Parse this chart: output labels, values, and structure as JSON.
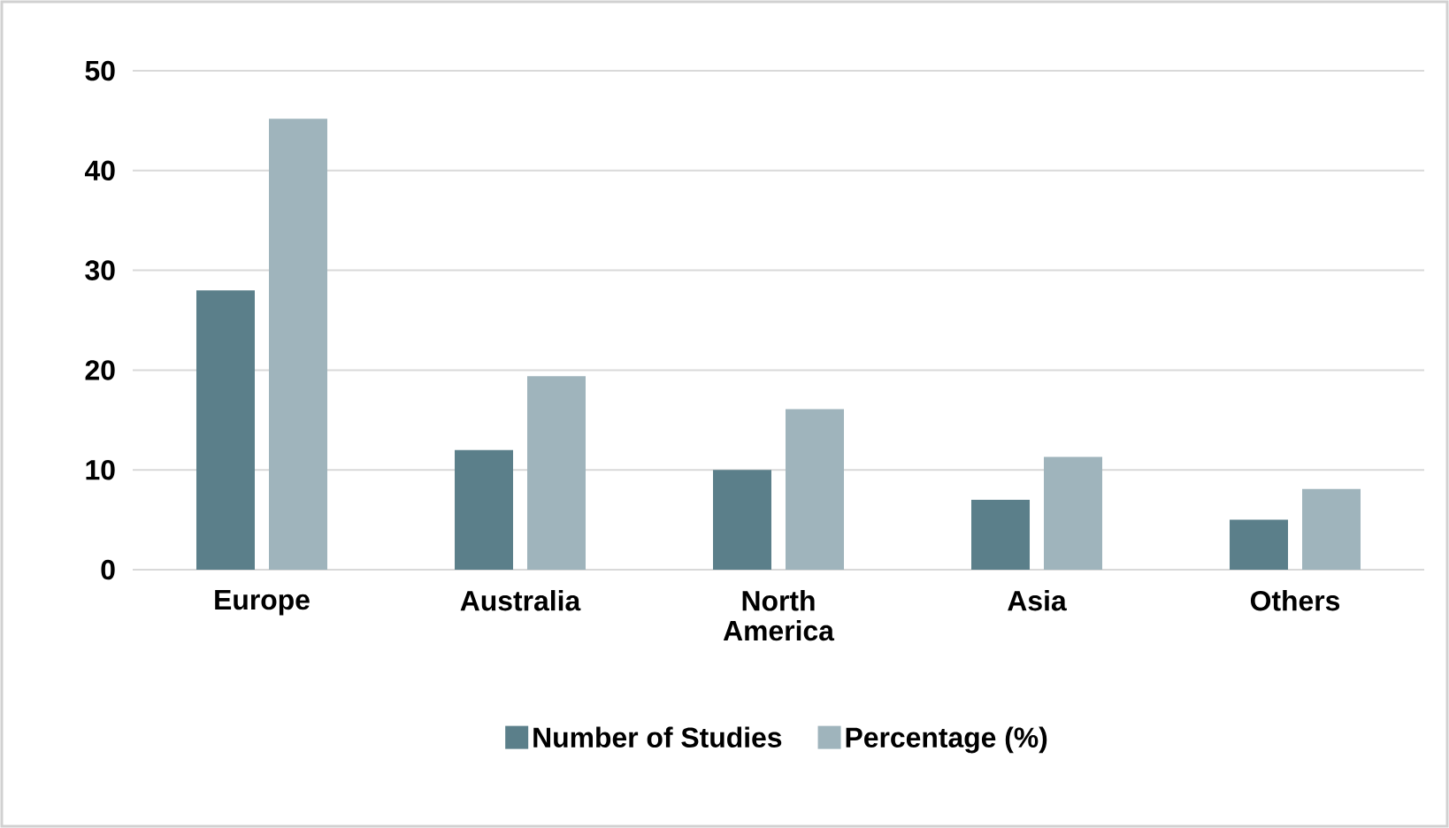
{
  "chart_data": {
    "type": "bar",
    "categories": [
      "Europe",
      "Australia",
      "North America",
      "Asia",
      "Others"
    ],
    "series": [
      {
        "name": "Number of Studies",
        "color": "#5b7f8a",
        "values": [
          28,
          12,
          10,
          7,
          5
        ]
      },
      {
        "name": "Percentage (%)",
        "color": "#9fb4bc",
        "values": [
          45.2,
          19.4,
          16.1,
          11.3,
          8.1
        ]
      }
    ],
    "ylim": [
      0,
      50
    ],
    "yticks": [
      0,
      10,
      20,
      30,
      40,
      50
    ],
    "grid": "y",
    "legend": "bottom"
  }
}
